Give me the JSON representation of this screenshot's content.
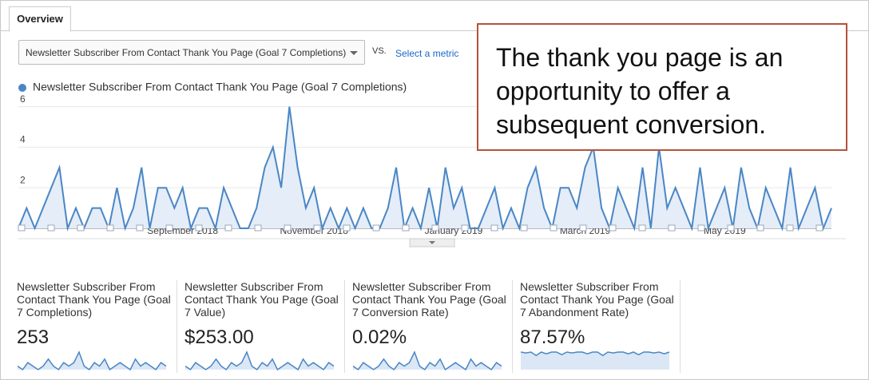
{
  "tab": "Overview",
  "metric_select": "Newsletter Subscriber From Contact Thank You Page (Goal 7 Completions)",
  "vs": "VS.",
  "select_metric": "Select a metric",
  "callout": "The thank you page is an opportunity to offer a subsequent conversion.",
  "chart_data": {
    "type": "line",
    "categories": [
      null,
      null,
      null,
      null,
      null,
      null,
      null,
      null,
      null,
      null,
      null,
      null,
      null,
      null,
      null,
      null,
      null,
      null,
      null,
      null,
      "September 2018",
      null,
      null,
      null,
      null,
      null,
      null,
      null,
      null,
      null,
      null,
      null,
      null,
      null,
      null,
      null,
      "November 2018",
      null,
      null,
      null,
      null,
      null,
      null,
      null,
      null,
      null,
      null,
      null,
      null,
      null,
      null,
      null,
      null,
      "January 2019",
      null,
      null,
      null,
      null,
      null,
      null,
      null,
      null,
      null,
      null,
      null,
      null,
      null,
      null,
      null,
      "March 2019",
      null,
      null,
      null,
      null,
      null,
      null,
      null,
      null,
      null,
      null,
      null,
      null,
      null,
      null,
      null,
      null,
      "May 2019",
      null,
      null,
      null,
      null,
      null,
      null,
      null,
      null,
      null,
      null,
      null,
      null,
      null
    ],
    "series": [
      {
        "name": "Newsletter Subscriber From Contact Thank You Page (Goal 7 Completions)",
        "color": "#4a86c5",
        "values": [
          0,
          1,
          0,
          1,
          2,
          3,
          0,
          1,
          0,
          1,
          1,
          0,
          2,
          0,
          1,
          3,
          0,
          2,
          2,
          1,
          2,
          0,
          1,
          1,
          0,
          2,
          1,
          0,
          0,
          1,
          3,
          4,
          2,
          6,
          3,
          1,
          2,
          0,
          1,
          0,
          1,
          0,
          1,
          0,
          0,
          1,
          3,
          0,
          1,
          0,
          2,
          0,
          3,
          1,
          2,
          0,
          0,
          1,
          2,
          0,
          1,
          0,
          2,
          3,
          1,
          0,
          2,
          2,
          1,
          3,
          4,
          1,
          0,
          2,
          1,
          0,
          3,
          0,
          4,
          1,
          2,
          1,
          0,
          3,
          0,
          1,
          2,
          0,
          3,
          1,
          0,
          2,
          1,
          0,
          3,
          0,
          1,
          2,
          0,
          1
        ]
      }
    ],
    "ylim": [
      0,
      6.3
    ],
    "yticks": [
      2,
      4,
      6
    ],
    "grid": true
  },
  "scorecards": [
    {
      "label": "Newsletter Subscriber From Contact Thank You Page (Goal 7 Completions)",
      "value": "253",
      "sparkline": [
        1,
        0,
        2,
        1,
        0,
        1,
        3,
        1,
        0,
        2,
        1,
        2,
        5,
        1,
        0,
        2,
        1,
        3,
        0,
        1,
        2,
        1,
        0,
        3,
        1,
        2,
        1,
        0,
        2,
        1
      ]
    },
    {
      "label": "Newsletter Subscriber From Contact Thank You Page (Goal 7 Value)",
      "value": "$253.00",
      "sparkline": [
        1,
        0,
        2,
        1,
        0,
        1,
        3,
        1,
        0,
        2,
        1,
        2,
        5,
        1,
        0,
        2,
        1,
        3,
        0,
        1,
        2,
        1,
        0,
        3,
        1,
        2,
        1,
        0,
        2,
        1
      ]
    },
    {
      "label": "Newsletter Subscriber From Contact Thank You Page (Goal 7 Conversion Rate)",
      "value": "0.02%",
      "sparkline": [
        0.01,
        0,
        0.02,
        0.01,
        0,
        0.01,
        0.03,
        0.01,
        0,
        0.02,
        0.01,
        0.02,
        0.05,
        0.01,
        0,
        0.02,
        0.01,
        0.03,
        0,
        0.01,
        0.02,
        0.01,
        0,
        0.03,
        0.01,
        0.02,
        0.01,
        0,
        0.02,
        0.01
      ]
    },
    {
      "label": "Newsletter Subscriber From Contact Thank You Page (Goal 7 Abandonment Rate)",
      "value": "87.57%",
      "sparkline": [
        100,
        95,
        100,
        80,
        100,
        90,
        100,
        100,
        85,
        100,
        95,
        100,
        100,
        90,
        100,
        100,
        80,
        100,
        95,
        100,
        100,
        90,
        100,
        85,
        100,
        100,
        95,
        100,
        90,
        100
      ]
    }
  ]
}
